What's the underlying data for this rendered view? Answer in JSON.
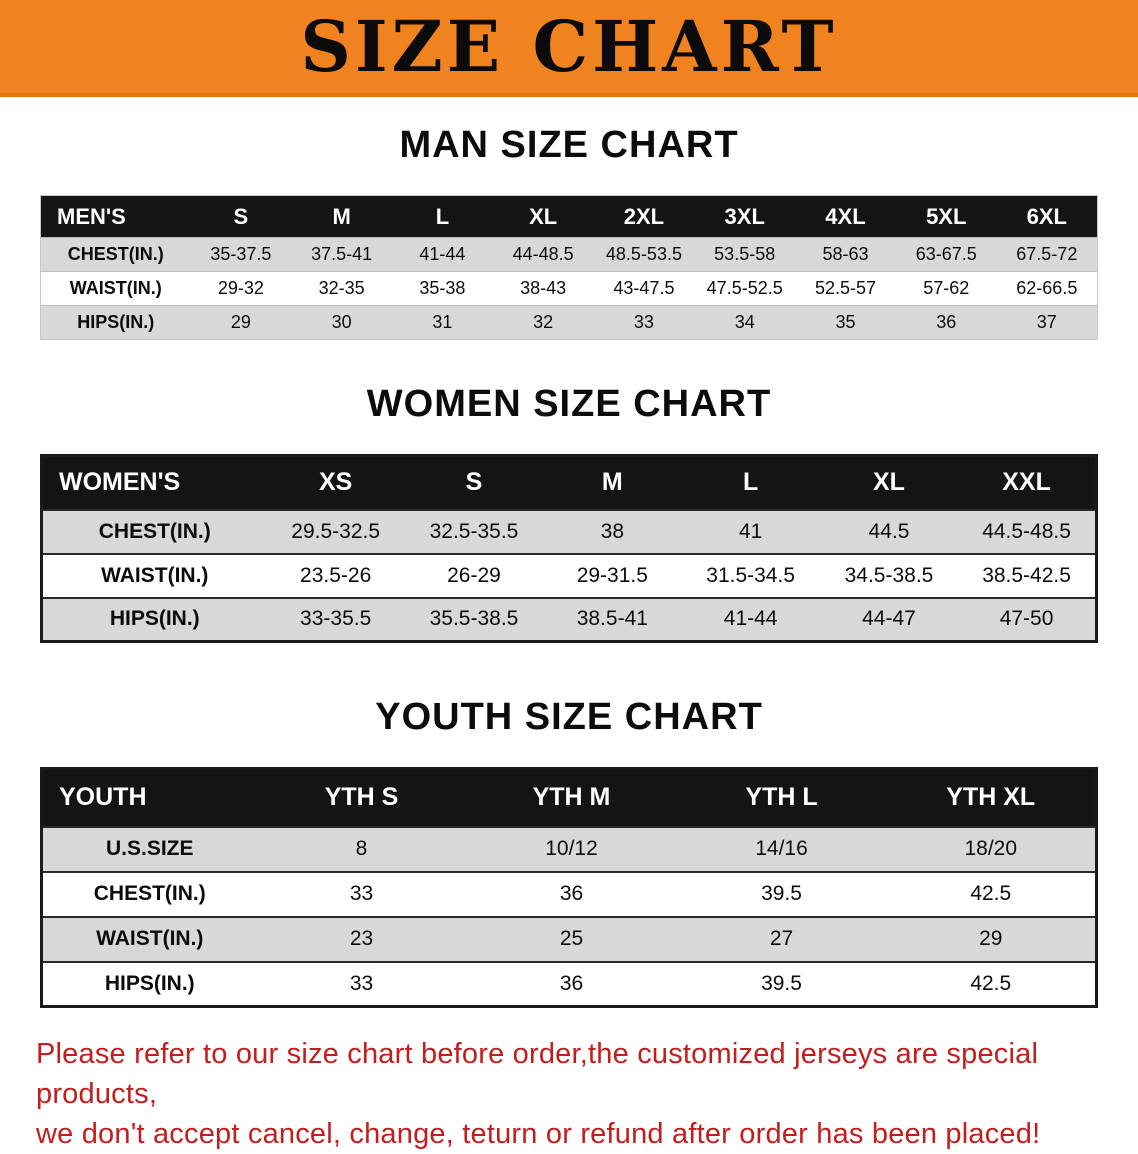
{
  "banner": {
    "title": "SIZE CHART",
    "bg_color": "#f0831f"
  },
  "colors": {
    "header_row_bg": "#141414",
    "stripe_gray": "#d8d8d8",
    "footer_text": "#c41d1d"
  },
  "sections": [
    {
      "heading": "MAN SIZE CHART",
      "table": {
        "title": "MEN'S",
        "columns": [
          "S",
          "M",
          "L",
          "XL",
          "2XL",
          "3XL",
          "4XL",
          "5XL",
          "6XL"
        ],
        "rows": [
          {
            "label": "CHEST(IN.)",
            "values": [
              "35-37.5",
              "37.5-41",
              "41-44",
              "44-48.5",
              "48.5-53.5",
              "53.5-58",
              "58-63",
              "63-67.5",
              "67.5-72"
            ]
          },
          {
            "label": "WAIST(IN.)",
            "values": [
              "29-32",
              "32-35",
              "35-38",
              "38-43",
              "43-47.5",
              "47.5-52.5",
              "52.5-57",
              "57-62",
              "62-66.5"
            ]
          },
          {
            "label": "HIPS(IN.)",
            "values": [
              "29",
              "30",
              "31",
              "32",
              "33",
              "34",
              "35",
              "36",
              "37"
            ]
          }
        ]
      }
    },
    {
      "heading": "WOMEN SIZE CHART",
      "table": {
        "title": "WOMEN'S",
        "columns": [
          "XS",
          "S",
          "M",
          "L",
          "XL",
          "XXL"
        ],
        "rows": [
          {
            "label": "CHEST(IN.)",
            "values": [
              "29.5-32.5",
              "32.5-35.5",
              "38",
              "41",
              "44.5",
              "44.5-48.5"
            ]
          },
          {
            "label": "WAIST(IN.)",
            "values": [
              "23.5-26",
              "26-29",
              "29-31.5",
              "31.5-34.5",
              "34.5-38.5",
              "38.5-42.5"
            ]
          },
          {
            "label": "HIPS(IN.)",
            "values": [
              "33-35.5",
              "35.5-38.5",
              "38.5-41",
              "41-44",
              "44-47",
              "47-50"
            ]
          }
        ]
      }
    },
    {
      "heading": "YOUTH SIZE CHART",
      "table": {
        "title": "YOUTH",
        "columns": [
          "YTH S",
          "YTH M",
          "YTH L",
          "YTH XL"
        ],
        "rows": [
          {
            "label": "U.S.SIZE",
            "values": [
              "8",
              "10/12",
              "14/16",
              "18/20"
            ]
          },
          {
            "label": "CHEST(IN.)",
            "values": [
              "33",
              "36",
              "39.5",
              "42.5"
            ]
          },
          {
            "label": "WAIST(IN.)",
            "values": [
              "23",
              "25",
              "27",
              "29"
            ]
          },
          {
            "label": "HIPS(IN.)",
            "values": [
              "33",
              "36",
              "39.5",
              "42.5"
            ]
          }
        ]
      }
    }
  ],
  "footer": {
    "line1": "Please refer to our size chart before order,the customized jerseys are special products,",
    "line2": "we don't accept cancel, change, teturn or refund after order has been placed!"
  }
}
